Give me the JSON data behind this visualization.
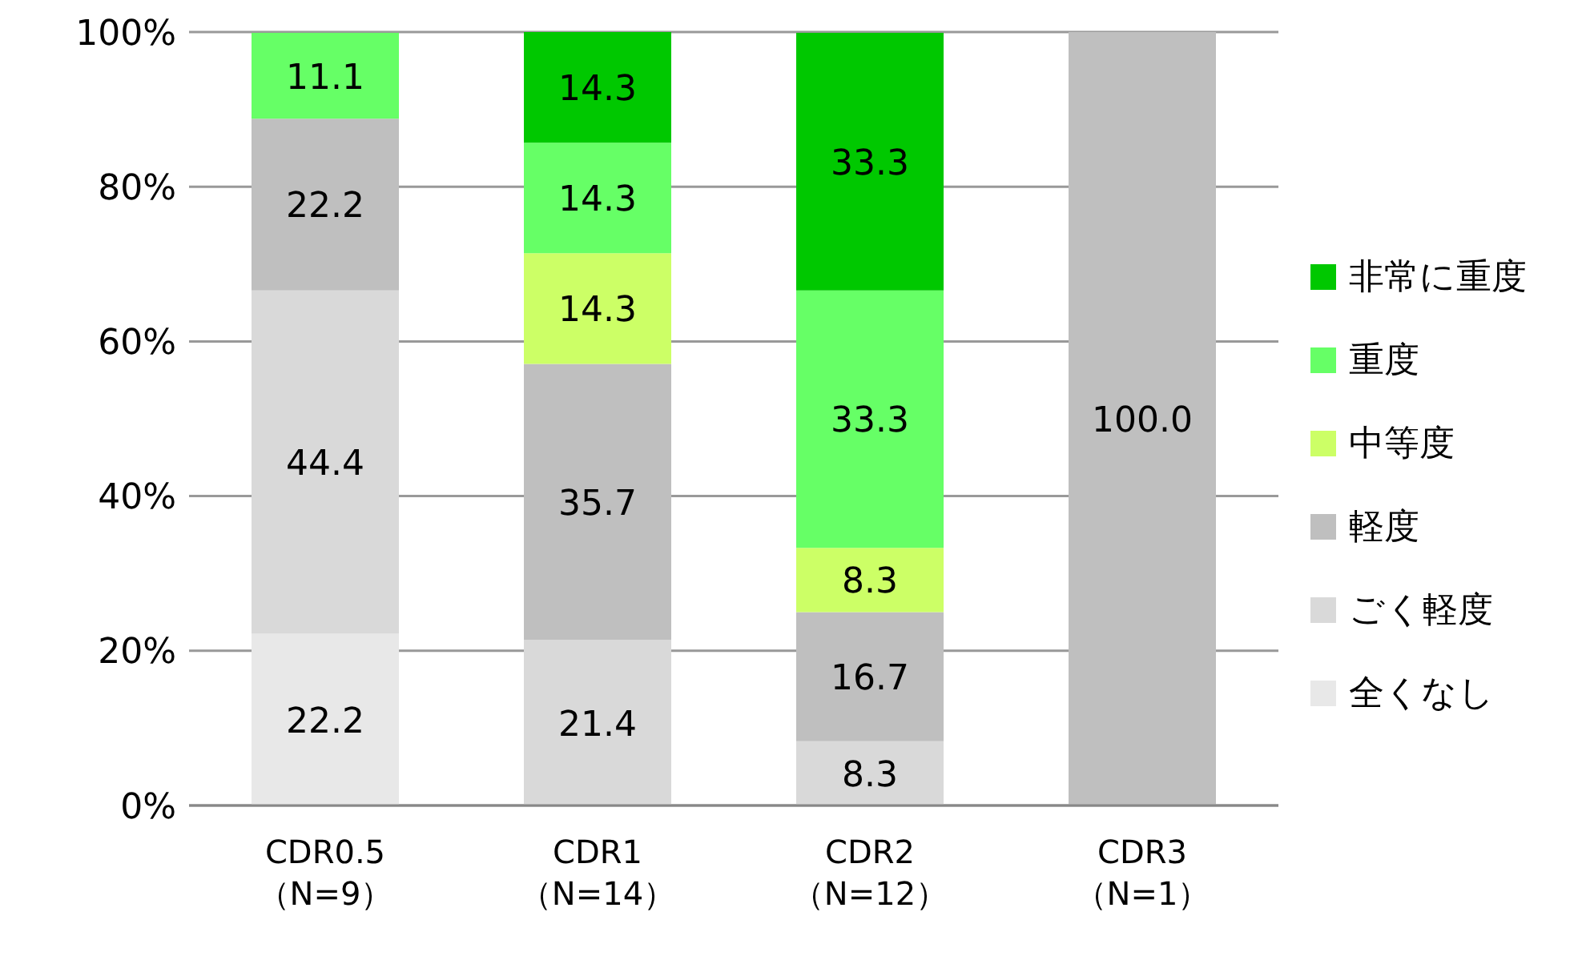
{
  "chart_data": {
    "type": "bar",
    "stacked": true,
    "categories": [
      "CDR0.5\n（N=9）",
      "CDR1\n（N=14）",
      "CDR2\n（N=12）",
      "CDR3\n（N=1）"
    ],
    "series": [
      {
        "name": "全くなし",
        "color": "#e8e8e8",
        "values": [
          22.2,
          null,
          null,
          null
        ],
        "value_labels": [
          "22.2",
          null,
          null,
          null
        ]
      },
      {
        "name": "ごく軽度",
        "color": "#d9d9d9",
        "values": [
          44.4,
          21.4,
          8.3,
          null
        ],
        "value_labels": [
          "44.4",
          "21.4",
          "8.3",
          null
        ]
      },
      {
        "name": "軽度",
        "color": "#bfbfbf",
        "values": [
          22.2,
          35.7,
          16.7,
          100.0
        ],
        "value_labels": [
          "22.2",
          "35.7",
          "16.7",
          "100.0"
        ]
      },
      {
        "name": "中等度",
        "color": "#ccff66",
        "values": [
          null,
          14.3,
          8.3,
          null
        ],
        "value_labels": [
          null,
          "14.3",
          "8.3",
          null
        ]
      },
      {
        "name": "重度",
        "color": "#66ff66",
        "values": [
          11.1,
          14.3,
          33.3,
          null
        ],
        "value_labels": [
          "11.1",
          "14.3",
          "33.3",
          null
        ]
      },
      {
        "name": "非常に重度",
        "color": "#00c800",
        "values": [
          null,
          14.3,
          33.3,
          null
        ],
        "value_labels": [
          null,
          "14.3",
          "33.3",
          null
        ]
      }
    ],
    "ylim": [
      0,
      100
    ],
    "yticks": [
      {
        "value": 0,
        "label": "0%"
      },
      {
        "value": 20,
        "label": "20%"
      },
      {
        "value": 40,
        "label": "40%"
      },
      {
        "value": 60,
        "label": "60%"
      },
      {
        "value": 80,
        "label": "80%"
      },
      {
        "value": 100,
        "label": "100%"
      }
    ],
    "grid": "y",
    "legend": "right"
  }
}
